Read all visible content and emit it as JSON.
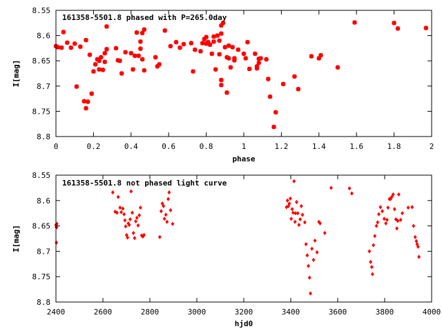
{
  "chart_data": [
    {
      "type": "scatter",
      "title": "161358-5501.8 phased with P=265.0day",
      "xlabel": "phase",
      "ylabel": "I[mag]",
      "xlim": [
        0,
        2
      ],
      "ylim": [
        8.8,
        8.55
      ],
      "y_inverted": true,
      "xticks": [
        "0",
        "0.2",
        "0.4",
        "0.6",
        "0.8",
        "1",
        "1.2",
        "1.4",
        "1.6",
        "1.8",
        "2"
      ],
      "yticks": [
        "8.55",
        "8.6",
        "8.65",
        "8.7",
        "8.75",
        "8.8"
      ],
      "marker_color": "#ff0000",
      "grid": false,
      "points": [
        [
          0.0,
          8.621
        ],
        [
          0.01,
          8.623
        ],
        [
          0.03,
          8.624
        ],
        [
          0.04,
          8.593
        ],
        [
          0.06,
          8.614
        ],
        [
          0.08,
          8.624
        ],
        [
          0.1,
          8.616
        ],
        [
          0.11,
          8.701
        ],
        [
          0.13,
          8.622
        ],
        [
          0.15,
          8.73
        ],
        [
          0.16,
          8.609
        ],
        [
          0.16,
          8.744
        ],
        [
          0.17,
          8.731
        ],
        [
          0.18,
          8.638
        ],
        [
          0.19,
          8.715
        ],
        [
          0.2,
          8.671
        ],
        [
          0.21,
          8.657
        ],
        [
          0.22,
          8.647
        ],
        [
          0.23,
          8.65
        ],
        [
          0.23,
          8.667
        ],
        [
          0.24,
          8.643
        ],
        [
          0.25,
          8.668
        ],
        [
          0.26,
          8.652
        ],
        [
          0.26,
          8.635
        ],
        [
          0.27,
          8.627
        ],
        [
          0.27,
          8.582
        ],
        [
          0.32,
          8.625
        ],
        [
          0.33,
          8.649
        ],
        [
          0.34,
          8.65
        ],
        [
          0.35,
          8.675
        ],
        [
          0.37,
          8.633
        ],
        [
          0.4,
          8.635
        ],
        [
          0.41,
          8.667
        ],
        [
          0.42,
          8.64
        ],
        [
          0.43,
          8.594
        ],
        [
          0.44,
          8.64
        ],
        [
          0.45,
          8.612
        ],
        [
          0.45,
          8.626
        ],
        [
          0.46,
          8.595
        ],
        [
          0.46,
          8.647
        ],
        [
          0.47,
          8.669
        ],
        [
          0.47,
          8.588
        ],
        [
          0.53,
          8.643
        ],
        [
          0.54,
          8.661
        ],
        [
          0.55,
          8.657
        ],
        [
          0.58,
          8.59
        ],
        [
          0.61,
          8.621
        ],
        [
          0.64,
          8.613
        ],
        [
          0.66,
          8.624
        ],
        [
          0.68,
          8.617
        ],
        [
          0.72,
          8.615
        ],
        [
          0.73,
          8.671
        ],
        [
          0.74,
          8.628
        ],
        [
          0.77,
          8.631
        ],
        [
          0.78,
          8.615
        ],
        [
          0.79,
          8.607
        ],
        [
          0.8,
          8.603
        ],
        [
          0.8,
          8.616
        ],
        [
          0.81,
          8.613
        ],
        [
          0.82,
          8.618
        ],
        [
          0.83,
          8.636
        ],
        [
          0.84,
          8.612
        ],
        [
          0.84,
          8.602
        ],
        [
          0.85,
          8.667
        ],
        [
          0.86,
          8.6
        ],
        [
          0.87,
          8.637
        ],
        [
          0.87,
          8.61
        ],
        [
          0.88,
          8.596
        ],
        [
          0.88,
          8.688
        ],
        [
          0.88,
          8.698
        ],
        [
          0.88,
          8.58
        ],
        [
          0.89,
          8.575
        ],
        [
          0.9,
          8.623
        ],
        [
          0.91,
          8.713
        ],
        [
          0.91,
          8.643
        ],
        [
          0.92,
          8.62
        ],
        [
          0.92,
          8.645
        ],
        [
          0.93,
          8.663
        ],
        [
          0.94,
          8.623
        ],
        [
          0.95,
          8.645
        ],
        [
          0.95,
          8.649
        ],
        [
          0.97,
          8.628
        ],
        [
          1.0,
          8.636
        ],
        [
          1.01,
          8.645
        ],
        [
          1.02,
          8.613
        ],
        [
          1.03,
          8.666
        ],
        [
          1.06,
          8.636
        ],
        [
          1.07,
          8.661
        ],
        [
          1.07,
          8.665
        ],
        [
          1.08,
          8.654
        ],
        [
          1.08,
          8.646
        ],
        [
          1.09,
          8.645
        ],
        [
          1.12,
          8.647
        ],
        [
          1.13,
          8.686
        ],
        [
          1.14,
          8.721
        ],
        [
          1.16,
          8.781
        ],
        [
          1.17,
          8.752
        ],
        [
          1.21,
          8.696
        ],
        [
          1.27,
          8.681
        ],
        [
          1.29,
          8.706
        ],
        [
          1.36,
          8.641
        ],
        [
          1.4,
          8.645
        ],
        [
          1.41,
          8.639
        ],
        [
          1.5,
          8.663
        ],
        [
          1.59,
          8.574
        ],
        [
          1.8,
          8.575
        ],
        [
          1.82,
          8.586
        ],
        [
          1.97,
          8.585
        ]
      ]
    },
    {
      "type": "scatter",
      "title": "161358-5501.8 not phased light curve",
      "xlabel": "hjd0",
      "ylabel": "I[mag]",
      "xlim": [
        2400,
        4000
      ],
      "ylim": [
        8.8,
        8.55
      ],
      "y_inverted": true,
      "xticks": [
        "2400",
        "2600",
        "2800",
        "3000",
        "3200",
        "3400",
        "3600",
        "3800",
        "4000"
      ],
      "yticks": [
        "8.55",
        "8.6",
        "8.65",
        "8.7",
        "8.75",
        "8.8"
      ],
      "marker_color": "#ff0000",
      "grid": false,
      "points": [
        [
          2400,
          8.648
        ],
        [
          2401,
          8.652
        ],
        [
          2402,
          8.683
        ],
        [
          2403,
          8.653
        ],
        [
          2404,
          8.646
        ],
        [
          2642,
          8.584
        ],
        [
          2652,
          8.622
        ],
        [
          2660,
          8.624
        ],
        [
          2665,
          8.593
        ],
        [
          2673,
          8.614
        ],
        [
          2678,
          8.623
        ],
        [
          2685,
          8.616
        ],
        [
          2690,
          8.627
        ],
        [
          2694,
          8.639
        ],
        [
          2697,
          8.651
        ],
        [
          2701,
          8.668
        ],
        [
          2705,
          8.673
        ],
        [
          2708,
          8.645
        ],
        [
          2712,
          8.648
        ],
        [
          2716,
          8.637
        ],
        [
          2720,
          8.582
        ],
        [
          2725,
          8.624
        ],
        [
          2730,
          8.664
        ],
        [
          2735,
          8.674
        ],
        [
          2740,
          8.641
        ],
        [
          2745,
          8.634
        ],
        [
          2750,
          8.649
        ],
        [
          2755,
          8.629
        ],
        [
          2760,
          8.614
        ],
        [
          2765,
          8.669
        ],
        [
          2770,
          8.671
        ],
        [
          2775,
          8.668
        ],
        [
          2842,
          8.672
        ],
        [
          2848,
          8.621
        ],
        [
          2853,
          8.606
        ],
        [
          2858,
          8.611
        ],
        [
          2862,
          8.636
        ],
        [
          2868,
          8.628
        ],
        [
          2873,
          8.642
        ],
        [
          2878,
          8.597
        ],
        [
          2882,
          8.584
        ],
        [
          2888,
          8.619
        ],
        [
          2897,
          8.646
        ],
        [
          3382,
          8.613
        ],
        [
          3386,
          8.6
        ],
        [
          3390,
          8.611
        ],
        [
          3394,
          8.606
        ],
        [
          3398,
          8.596
        ],
        [
          3402,
          8.636
        ],
        [
          3406,
          8.617
        ],
        [
          3410,
          8.624
        ],
        [
          3414,
          8.562
        ],
        [
          3418,
          8.642
        ],
        [
          3420,
          8.625
        ],
        [
          3425,
          8.603
        ],
        [
          3430,
          8.625
        ],
        [
          3435,
          8.648
        ],
        [
          3440,
          8.637
        ],
        [
          3445,
          8.611
        ],
        [
          3450,
          8.628
        ],
        [
          3460,
          8.643
        ],
        [
          3465,
          8.686
        ],
        [
          3470,
          8.708
        ],
        [
          3475,
          8.729
        ],
        [
          3480,
          8.752
        ],
        [
          3484,
          8.783
        ],
        [
          3490,
          8.695
        ],
        [
          3497,
          8.717
        ],
        [
          3503,
          8.679
        ],
        [
          3512,
          8.702
        ],
        [
          3520,
          8.642
        ],
        [
          3525,
          8.645
        ],
        [
          3545,
          8.664
        ],
        [
          3572,
          8.575
        ],
        [
          3650,
          8.576
        ],
        [
          3660,
          8.586
        ],
        [
          3735,
          8.7
        ],
        [
          3740,
          8.721
        ],
        [
          3745,
          8.731
        ],
        [
          3748,
          8.745
        ],
        [
          3752,
          8.688
        ],
        [
          3758,
          8.67
        ],
        [
          3765,
          8.65
        ],
        [
          3770,
          8.643
        ],
        [
          3775,
          8.627
        ],
        [
          3782,
          8.613
        ],
        [
          3790,
          8.621
        ],
        [
          3798,
          8.636
        ],
        [
          3805,
          8.645
        ],
        [
          3810,
          8.638
        ],
        [
          3814,
          8.614
        ],
        [
          3820,
          8.597
        ],
        [
          3825,
          8.597
        ],
        [
          3830,
          8.593
        ],
        [
          3836,
          8.588
        ],
        [
          3842,
          8.617
        ],
        [
          3848,
          8.637
        ],
        [
          3852,
          8.655
        ],
        [
          3856,
          8.64
        ],
        [
          3860,
          8.588
        ],
        [
          3868,
          8.638
        ],
        [
          3875,
          8.625
        ],
        [
          3900,
          8.614
        ],
        [
          3917,
          8.613
        ],
        [
          3923,
          8.65
        ],
        [
          3930,
          8.672
        ],
        [
          3935,
          8.68
        ],
        [
          3938,
          8.686
        ],
        [
          3942,
          8.691
        ],
        [
          3946,
          8.711
        ]
      ]
    }
  ]
}
